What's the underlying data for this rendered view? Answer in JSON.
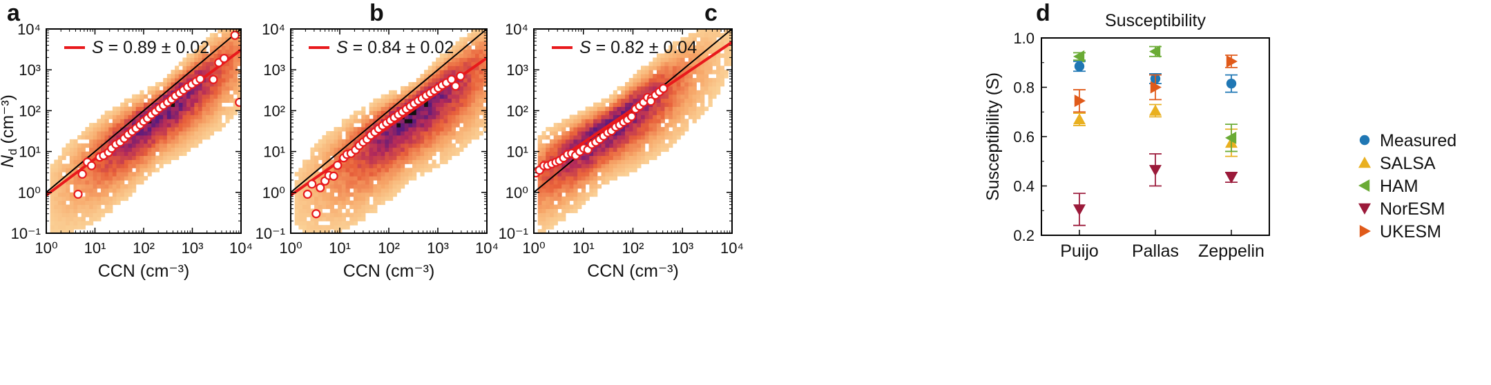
{
  "figure": {
    "panels": [
      "a",
      "b",
      "c",
      "d"
    ]
  },
  "colors": {
    "fit_line": "#e8191c",
    "one_to_one": "#000000",
    "marker_edge": "#e8191c",
    "heat_low": "#fce1a8",
    "heat_high": "#5b1b7c",
    "Measured": "#1f77b4",
    "SALSA": "#e9b020",
    "HAM": "#6aab35",
    "NorESM": "#9b1a3a",
    "UKESM": "#e05a1a"
  },
  "chart_data": [
    {
      "panel": "a",
      "type": "scatter",
      "subtype": "2d-histogram with binned means and power-law fit",
      "xlabel": "CCN (cm⁻³)",
      "ylabel_main": "N",
      "ylabel_sub": "d",
      "ylabel_unit": " (cm⁻³)",
      "xscale": "log",
      "yscale": "log",
      "xlim": [
        1,
        10000
      ],
      "ylim": [
        0.1,
        10000
      ],
      "xticks": [
        "10⁰",
        "10¹",
        "10²",
        "10³",
        "10⁴"
      ],
      "yticks": [
        "10⁻¹",
        "10⁰",
        "10¹",
        "10²",
        "10³",
        "10⁴"
      ],
      "legend_symbol": "S",
      "legend_value": " = 0.89 ± 0.02",
      "fit": {
        "slope": 0.89,
        "intercept_at_1": 0.85
      },
      "one_to_one": true,
      "binned_means": [
        [
          4.5,
          0.9
        ],
        [
          5.5,
          2.8
        ],
        [
          7,
          5.5
        ],
        [
          8.5,
          4.5
        ],
        [
          12.5,
          7.3
        ],
        [
          15,
          8
        ],
        [
          19,
          9.5
        ],
        [
          22,
          12
        ],
        [
          27,
          15
        ],
        [
          33,
          17
        ],
        [
          40,
          21
        ],
        [
          48,
          26
        ],
        [
          58,
          31
        ],
        [
          70,
          37
        ],
        [
          85,
          45
        ],
        [
          100,
          55
        ],
        [
          120,
          65
        ],
        [
          145,
          80
        ],
        [
          175,
          95
        ],
        [
          210,
          115
        ],
        [
          255,
          135
        ],
        [
          310,
          160
        ],
        [
          375,
          190
        ],
        [
          450,
          230
        ],
        [
          550,
          270
        ],
        [
          660,
          320
        ],
        [
          800,
          380
        ],
        [
          980,
          440
        ],
        [
          1200,
          520
        ],
        [
          1450,
          600
        ],
        [
          2700,
          580
        ],
        [
          3500,
          1500
        ],
        [
          4500,
          1900
        ],
        [
          7500,
          7000
        ],
        [
          9300,
          160
        ]
      ],
      "density": {
        "center": [
          2.35,
          2.15
        ],
        "spread": 0.55,
        "scatter_low": 1.2
      }
    },
    {
      "panel": "b",
      "type": "scatter",
      "subtype": "2d-histogram with binned means and power-law fit",
      "xlabel": "CCN (cm⁻³)",
      "xscale": "log",
      "yscale": "log",
      "xlim": [
        1,
        10000
      ],
      "ylim": [
        0.1,
        10000
      ],
      "xticks": [
        "10⁰",
        "10¹",
        "10²",
        "10³",
        "10⁴"
      ],
      "yticks": [
        "10⁻¹",
        "10⁰",
        "10¹",
        "10²",
        "10³",
        "10⁴"
      ],
      "legend_symbol": "S",
      "legend_value": " = 0.84 ± 0.02",
      "fit": {
        "slope": 0.84,
        "intercept_at_1": 0.85
      },
      "one_to_one": true,
      "binned_means": [
        [
          2.2,
          0.9
        ],
        [
          2.7,
          1.6
        ],
        [
          3.3,
          0.3
        ],
        [
          4,
          1.3
        ],
        [
          5,
          1.9
        ],
        [
          6,
          2.6
        ],
        [
          7.5,
          2.5
        ],
        [
          9,
          4.6
        ],
        [
          12,
          7
        ],
        [
          14,
          8.5
        ],
        [
          17,
          9
        ],
        [
          21,
          11
        ],
        [
          25,
          14
        ],
        [
          30,
          17
        ],
        [
          36,
          20
        ],
        [
          43,
          25
        ],
        [
          52,
          30
        ],
        [
          62,
          36
        ],
        [
          75,
          43
        ],
        [
          90,
          50
        ],
        [
          108,
          58
        ],
        [
          130,
          68
        ],
        [
          157,
          80
        ],
        [
          190,
          94
        ],
        [
          228,
          110
        ],
        [
          275,
          128
        ],
        [
          330,
          150
        ],
        [
          400,
          175
        ],
        [
          480,
          200
        ],
        [
          580,
          235
        ],
        [
          700,
          270
        ],
        [
          850,
          310
        ],
        [
          1020,
          360
        ],
        [
          1230,
          420
        ],
        [
          1500,
          480
        ],
        [
          1900,
          580
        ],
        [
          2300,
          400
        ],
        [
          2900,
          700
        ]
      ],
      "density": {
        "center": [
          2.5,
          2.3
        ],
        "spread": 0.75,
        "scatter_low": 1.6
      }
    },
    {
      "panel": "c",
      "type": "scatter",
      "subtype": "2d-histogram with binned means and power-law fit",
      "xlabel": "CCN (cm⁻³)",
      "xscale": "log",
      "yscale": "log",
      "xlim": [
        1,
        10000
      ],
      "ylim": [
        0.1,
        10000
      ],
      "xticks": [
        "10⁰",
        "10¹",
        "10²",
        "10³",
        "10⁴"
      ],
      "yticks": [
        "10⁻¹",
        "10⁰",
        "10¹",
        "10²",
        "10³",
        "10⁴"
      ],
      "legend_symbol": "S",
      "legend_value": " = 0.82 ± 0.04",
      "fit": {
        "slope": 0.82,
        "intercept_at_1": 2.5
      },
      "one_to_one": true,
      "binned_means": [
        [
          1.1,
          3
        ],
        [
          1.3,
          3.5
        ],
        [
          1.6,
          4.5
        ],
        [
          1.9,
          4.5
        ],
        [
          2.3,
          5
        ],
        [
          2.8,
          5.5
        ],
        [
          3.3,
          6
        ],
        [
          4,
          7
        ],
        [
          4.8,
          8.5
        ],
        [
          5.8,
          9
        ],
        [
          7,
          8
        ],
        [
          8.5,
          10
        ],
        [
          10.2,
          12
        ],
        [
          12.3,
          11
        ],
        [
          14.8,
          15
        ],
        [
          17.8,
          17
        ],
        [
          21.4,
          20
        ],
        [
          25.7,
          24
        ],
        [
          31,
          29
        ],
        [
          37,
          32
        ],
        [
          45,
          40
        ],
        [
          54,
          45
        ],
        [
          65,
          53
        ],
        [
          78,
          60
        ],
        [
          94,
          72
        ],
        [
          113,
          110
        ],
        [
          136,
          130
        ],
        [
          164,
          160
        ],
        [
          197,
          210
        ],
        [
          237,
          200
        ],
        [
          285,
          240
        ],
        [
          343,
          290
        ],
        [
          412,
          350
        ],
        [
          230,
          170
        ]
      ],
      "density": {
        "center": [
          1.5,
          1.6
        ],
        "spread": 0.55,
        "scatter_low": 0.4
      }
    },
    {
      "panel": "d",
      "type": "scatter",
      "subtype": "categorical points with error bars",
      "title": "Susceptibility",
      "ylabel": "Susceptibility (S)",
      "ylim": [
        0.2,
        1.0
      ],
      "yticks": [
        "0.2",
        "0.4",
        "0.6",
        "0.8",
        "1.0"
      ],
      "categories": [
        "Puijo",
        "Pallas",
        "Zeppelin"
      ],
      "series": [
        {
          "name": "Measured",
          "marker": "circle",
          "values": [
            0.885,
            0.835,
            0.815
          ],
          "err": [
            0.02,
            0.02,
            0.035
          ]
        },
        {
          "name": "SALSA",
          "marker": "triangle-up",
          "values": [
            0.67,
            0.705,
            0.575
          ],
          "err": [
            0.025,
            0.025,
            0.055
          ]
        },
        {
          "name": "HAM",
          "marker": "triangle-left",
          "values": [
            0.925,
            0.945,
            0.595
          ],
          "err": [
            0.015,
            0.02,
            0.055
          ]
        },
        {
          "name": "NorESM",
          "marker": "triangle-down",
          "values": [
            0.305,
            0.465,
            0.435
          ],
          "err": [
            0.065,
            0.065,
            0.02
          ]
        },
        {
          "name": "UKESM",
          "marker": "triangle-right",
          "values": [
            0.745,
            0.8,
            0.905
          ],
          "err": [
            0.045,
            0.05,
            0.025
          ]
        }
      ],
      "legend_position": "right"
    }
  ]
}
